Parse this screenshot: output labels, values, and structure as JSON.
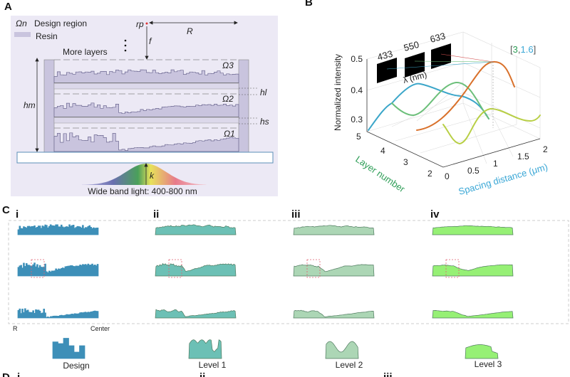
{
  "panel_labels": {
    "a": "A",
    "b": "B",
    "c": "C",
    "d": "D"
  },
  "panel_a": {
    "legend_design": "Design region",
    "legend_design_symbol": "Ωn",
    "legend_resin": "Resin",
    "rp": "rp",
    "R": "R",
    "f": "f",
    "more_layers": "More layers",
    "omega3": "Ω3",
    "omega2": "Ω2",
    "omega1": "Ω1",
    "hm": "hm",
    "hl": "hl",
    "hs": "hs",
    "k": "k",
    "light": "Wide band light: 400-800 nm",
    "colors": {
      "background": "#ece9f5",
      "resin": "#c9c4de",
      "substrate_border": "#5b8fb8"
    }
  },
  "panel_b": {
    "z_label": "Normalized intensity",
    "z_ticks": [
      "0.5",
      "0.4",
      "0.3"
    ],
    "y_label": "Layer number",
    "y_ticks": [
      "5",
      "4",
      "3",
      "2"
    ],
    "x_label": "Spacing distance (μm)",
    "x_ticks": [
      "0",
      "0.5",
      "1",
      "1.5",
      "2"
    ],
    "wavelengths": [
      "433",
      "550",
      "633"
    ],
    "lambda_label": "λ (nm)",
    "optimum": {
      "open": "[",
      "layer": "3",
      "sep": ",",
      "spacing": "1.6",
      "close": "]"
    },
    "colors": {
      "layer": "#2e9e57",
      "spacing": "#3aa7d6"
    }
  },
  "panel_c": {
    "columns": [
      "i",
      "ii",
      "iii",
      "iv"
    ],
    "axis_left": "R",
    "axis_right": "Center",
    "levels": [
      "Design",
      "Level 1",
      "Level 2",
      "Level 3"
    ],
    "colors": [
      "#3d8fb8",
      "#6cc0b5",
      "#acd6b5",
      "#96f075"
    ]
  },
  "panel_d": {
    "columns": [
      "i",
      "ii",
      "iii"
    ]
  }
}
